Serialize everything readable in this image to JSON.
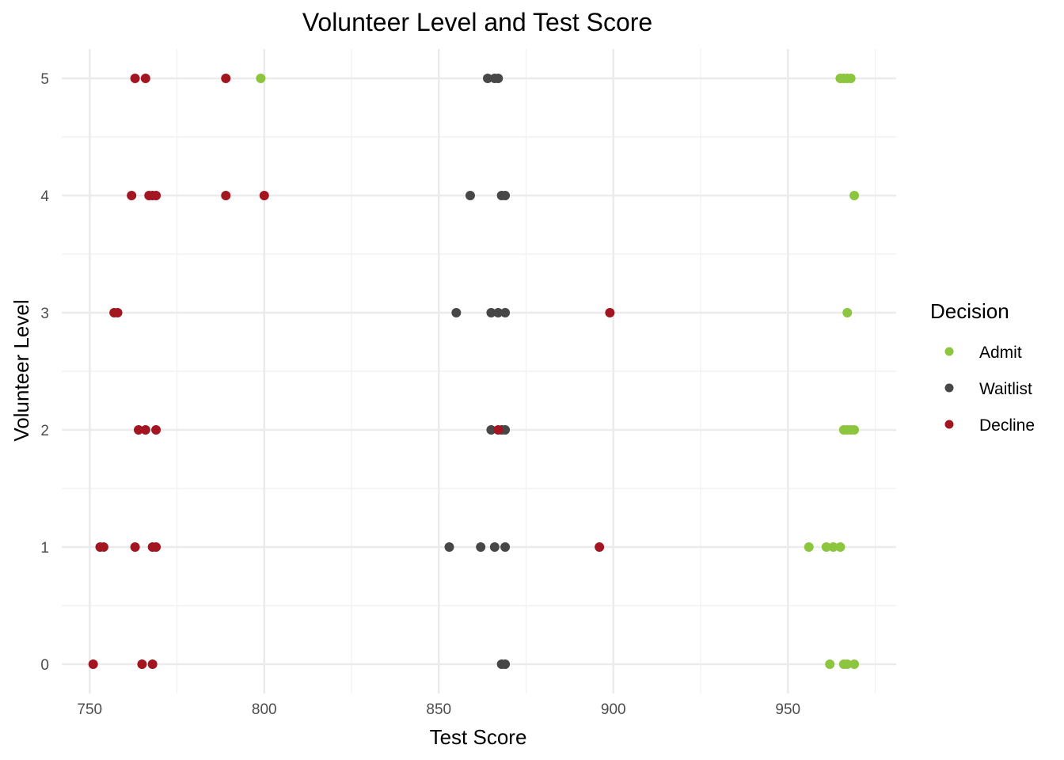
{
  "chart_data": {
    "type": "scatter",
    "title": "Volunteer Level and Test Score",
    "xlabel": "Test Score",
    "ylabel": "Volunteer Level",
    "xlim": [
      742,
      981
    ],
    "ylim": [
      -0.25,
      5.25
    ],
    "x_ticks": [
      750,
      800,
      850,
      900,
      950
    ],
    "x_tick_labels": [
      "750",
      "800",
      "850",
      "900",
      "950"
    ],
    "x_minor_ticks": [
      775,
      825,
      875,
      925,
      975
    ],
    "y_ticks": [
      0,
      1,
      2,
      3,
      4,
      5
    ],
    "y_tick_labels": [
      "0",
      "1",
      "2",
      "3",
      "4",
      "5"
    ],
    "y_minor_ticks": [
      0.5,
      1.5,
      2.5,
      3.5,
      4.5
    ],
    "grid": true,
    "legend": {
      "title": "Decision",
      "position": "right"
    },
    "series": [
      {
        "name": "Admit",
        "color": "#8CC63F",
        "points": [
          {
            "x": 799,
            "y": 5
          },
          {
            "x": 965,
            "y": 5
          },
          {
            "x": 966,
            "y": 5
          },
          {
            "x": 967,
            "y": 5
          },
          {
            "x": 968,
            "y": 5
          },
          {
            "x": 969,
            "y": 4
          },
          {
            "x": 967,
            "y": 3
          },
          {
            "x": 966,
            "y": 2
          },
          {
            "x": 967,
            "y": 2
          },
          {
            "x": 968,
            "y": 2
          },
          {
            "x": 969,
            "y": 2
          },
          {
            "x": 956,
            "y": 1
          },
          {
            "x": 961,
            "y": 1
          },
          {
            "x": 963,
            "y": 1
          },
          {
            "x": 965,
            "y": 1
          },
          {
            "x": 962,
            "y": 0
          },
          {
            "x": 966,
            "y": 0
          },
          {
            "x": 967,
            "y": 0
          },
          {
            "x": 969,
            "y": 0
          }
        ]
      },
      {
        "name": "Waitlist",
        "color": "#474747",
        "points": [
          {
            "x": 864,
            "y": 5
          },
          {
            "x": 866,
            "y": 5
          },
          {
            "x": 867,
            "y": 5
          },
          {
            "x": 859,
            "y": 4
          },
          {
            "x": 868,
            "y": 4
          },
          {
            "x": 869,
            "y": 4
          },
          {
            "x": 855,
            "y": 3
          },
          {
            "x": 865,
            "y": 3
          },
          {
            "x": 867,
            "y": 3
          },
          {
            "x": 869,
            "y": 3
          },
          {
            "x": 865,
            "y": 2
          },
          {
            "x": 868,
            "y": 2
          },
          {
            "x": 869,
            "y": 2
          },
          {
            "x": 853,
            "y": 1
          },
          {
            "x": 862,
            "y": 1
          },
          {
            "x": 866,
            "y": 1
          },
          {
            "x": 869,
            "y": 1
          },
          {
            "x": 868,
            "y": 0
          },
          {
            "x": 869,
            "y": 0
          }
        ]
      },
      {
        "name": "Decline",
        "color": "#A31621",
        "points": [
          {
            "x": 763,
            "y": 5
          },
          {
            "x": 766,
            "y": 5
          },
          {
            "x": 789,
            "y": 5
          },
          {
            "x": 762,
            "y": 4
          },
          {
            "x": 767,
            "y": 4
          },
          {
            "x": 768,
            "y": 4
          },
          {
            "x": 769,
            "y": 4
          },
          {
            "x": 789,
            "y": 4
          },
          {
            "x": 800,
            "y": 4
          },
          {
            "x": 757,
            "y": 3
          },
          {
            "x": 758,
            "y": 3
          },
          {
            "x": 899,
            "y": 3
          },
          {
            "x": 764,
            "y": 2
          },
          {
            "x": 766,
            "y": 2
          },
          {
            "x": 769,
            "y": 2
          },
          {
            "x": 867,
            "y": 2
          },
          {
            "x": 753,
            "y": 1
          },
          {
            "x": 754,
            "y": 1
          },
          {
            "x": 763,
            "y": 1
          },
          {
            "x": 768,
            "y": 1
          },
          {
            "x": 769,
            "y": 1
          },
          {
            "x": 896,
            "y": 1
          },
          {
            "x": 751,
            "y": 0
          },
          {
            "x": 765,
            "y": 0
          },
          {
            "x": 768,
            "y": 0
          }
        ]
      }
    ]
  }
}
